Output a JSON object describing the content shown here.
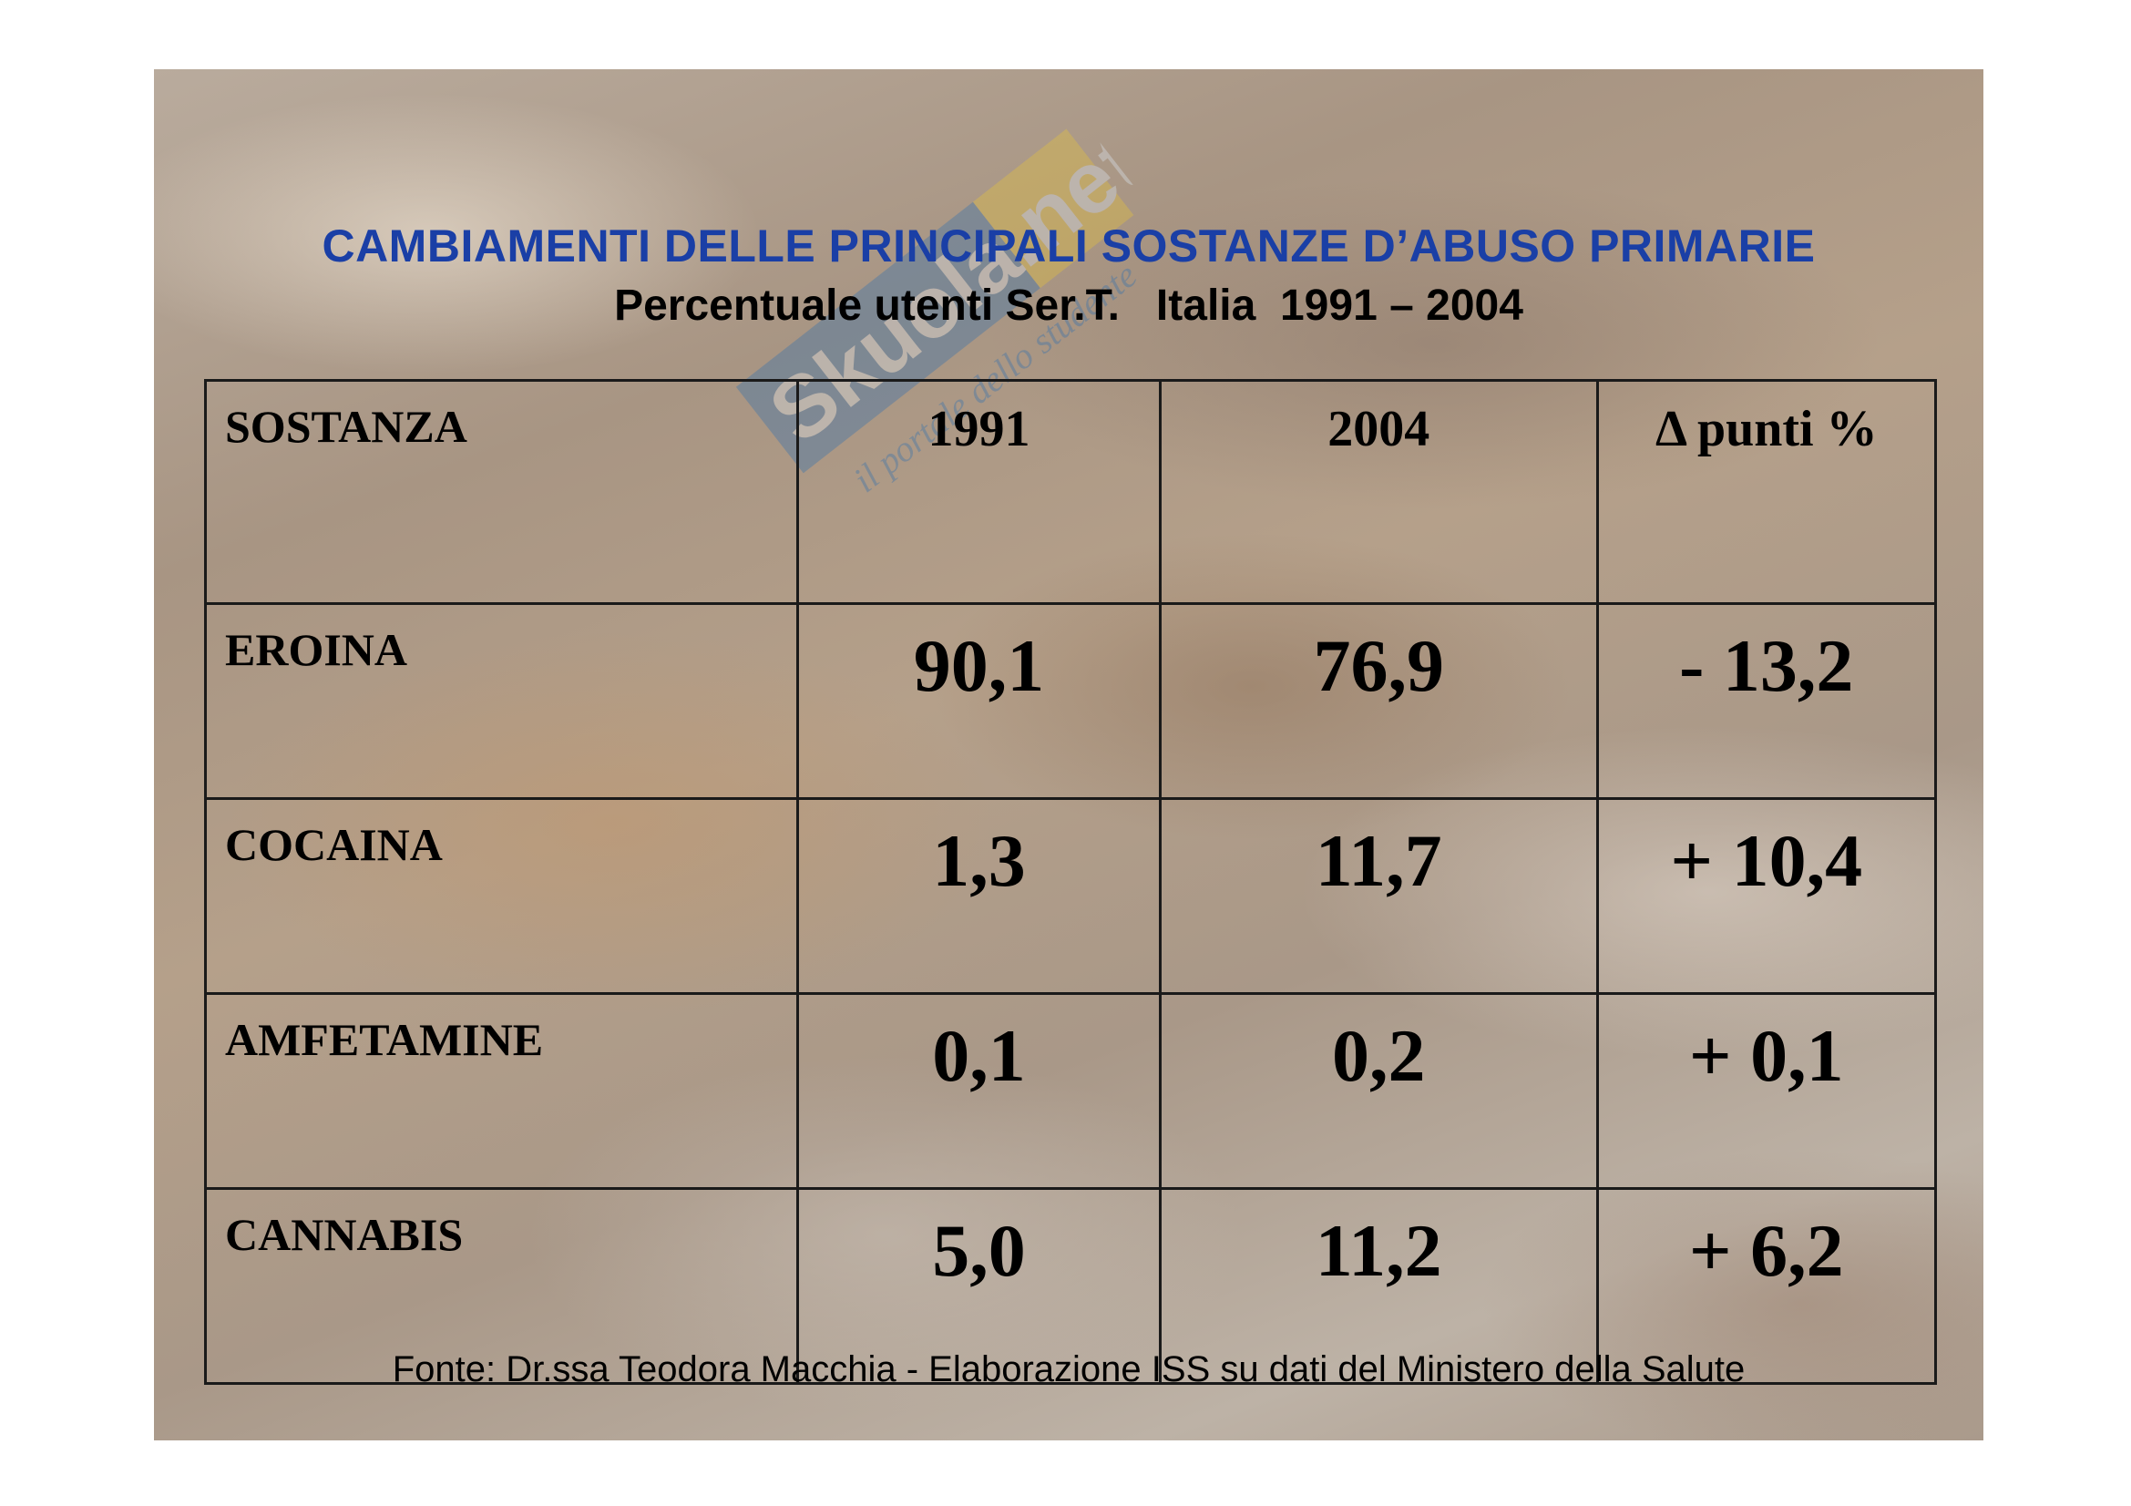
{
  "slide": {
    "title": "CAMBIAMENTI  DELLE PRINCIPALI SOSTANZE D’ABUSO PRIMARIE",
    "subtitle": "Percentuale utenti Ser.T.   Italia  1991 – 2004",
    "source": "Fonte: Dr.ssa Teodora Macchia - Elaborazione ISS su dati del Ministero della Salute",
    "watermark": {
      "brand": "Skuola.net",
      "tagline": "il portale dello studente"
    }
  },
  "table": {
    "headers": [
      "SOSTANZA",
      "1991",
      "2004",
      "Δ punti %"
    ],
    "rows": [
      {
        "substance": "EROINA",
        "y1991": "90,1",
        "y2004": "76,9",
        "delta": "- 13,2"
      },
      {
        "substance": "COCAINA",
        "y1991": "1,3",
        "y2004": "11,7",
        "delta": "+ 10,4"
      },
      {
        "substance": "AMFETAMINE",
        "y1991": "0,1",
        "y2004": "0,2",
        "delta": "+ 0,1"
      },
      {
        "substance": "CANNABIS",
        "y1991": "5,0",
        "y2004": "11,2",
        "delta": "+ 6,2"
      }
    ]
  },
  "colors": {
    "title": "#1a3fa6",
    "text": "#000000",
    "watermark_blue": "#2e6fb0",
    "watermark_yellow": "#e8c53a"
  }
}
